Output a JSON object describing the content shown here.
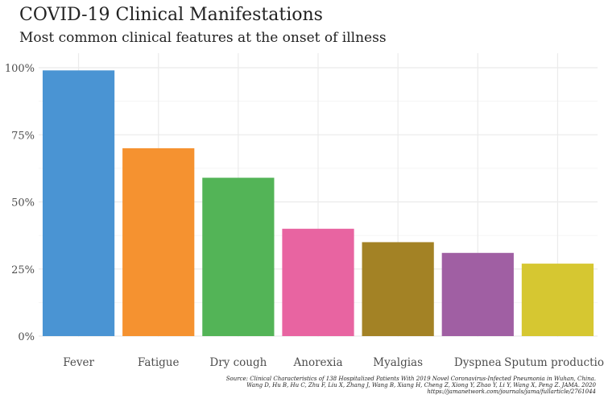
{
  "chart_data": {
    "type": "bar",
    "title": "COVID-19 Clinical Manifestations",
    "subtitle": "Most common clinical features at the onset of illness",
    "xlabel": "",
    "ylabel": "",
    "categories": [
      "Fever",
      "Fatigue",
      "Dry cough",
      "Anorexia",
      "Myalgias",
      "Dyspnea",
      "Sputum production"
    ],
    "values": [
      0.99,
      0.7,
      0.59,
      0.4,
      0.35,
      0.31,
      0.27
    ],
    "colors": [
      "#4a94d3",
      "#f59230",
      "#53b457",
      "#e864a1",
      "#a38225",
      "#a05fa3",
      "#d6c731"
    ],
    "ylim": [
      0,
      1
    ],
    "yticks": [
      0,
      0.25,
      0.5,
      0.75,
      1
    ],
    "ytick_labels": [
      "0%",
      "25%",
      "50%",
      "75%",
      "100%"
    ],
    "grid": true,
    "legend": "none"
  },
  "caption": {
    "line1": "Source: Clinical Characteristics of 138 Hospitalized Patients With 2019 Novel Coronavirus-Infected Pneumonia in Wuhan, China.",
    "line2": "Wang D, Hu B, Hu C, Zhu F, Liu X, Zhang J, Wang B, Xiang H, Cheng Z, Xiong Y, Zhao Y, Li Y, Wang X, Peng Z. JAMA. 2020",
    "line3": "https://jamanetwork.com/journals/jama/fullarticle/2761044"
  }
}
